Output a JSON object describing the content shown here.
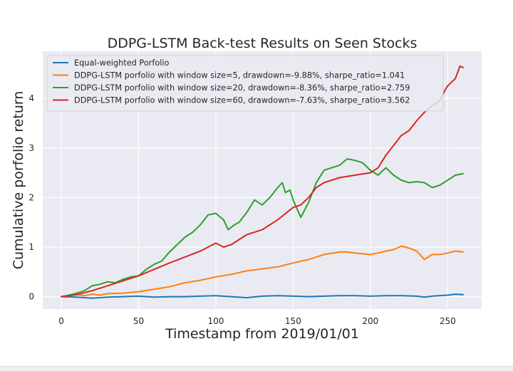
{
  "chart_data": {
    "type": "line",
    "title": "DDPG-LSTM Back-test Results on Seen Stocks",
    "xlabel": "Timestamp from 2019/01/01",
    "ylabel": "Cumulative porfolio return",
    "xlim": [
      -12,
      272
    ],
    "ylim": [
      -0.25,
      4.95
    ],
    "xticks": [
      0,
      50,
      100,
      150,
      200,
      250
    ],
    "yticks": [
      0,
      1,
      2,
      3,
      4
    ],
    "grid": true,
    "legend_position": "top-left",
    "series": [
      {
        "name": "Equal-weighted Porfolio",
        "color": "#1f77b4",
        "x": [
          0,
          10,
          20,
          30,
          40,
          50,
          60,
          70,
          80,
          90,
          100,
          110,
          120,
          130,
          140,
          150,
          160,
          170,
          180,
          190,
          200,
          210,
          220,
          230,
          235,
          240,
          250,
          255,
          260
        ],
        "y": [
          0.0,
          -0.01,
          -0.03,
          -0.01,
          0.0,
          0.01,
          -0.01,
          0.0,
          0.0,
          0.01,
          0.02,
          0.0,
          -0.02,
          0.01,
          0.02,
          0.01,
          0.0,
          0.01,
          0.02,
          0.02,
          0.01,
          0.02,
          0.02,
          0.01,
          -0.01,
          0.01,
          0.03,
          0.05,
          0.04
        ]
      },
      {
        "name": "DDPG-LSTM porfolio with window size=5, drawdown=-9.88%, sharpe_ratio=1.041",
        "color": "#ff7f0e",
        "x": [
          0,
          5,
          10,
          15,
          20,
          25,
          30,
          40,
          50,
          60,
          70,
          80,
          90,
          100,
          110,
          120,
          130,
          140,
          150,
          160,
          170,
          180,
          185,
          190,
          200,
          205,
          210,
          215,
          220,
          225,
          230,
          235,
          240,
          245,
          250,
          255,
          260
        ],
        "y": [
          0.0,
          0.02,
          0.04,
          0.02,
          0.05,
          0.03,
          0.06,
          0.07,
          0.1,
          0.15,
          0.2,
          0.28,
          0.33,
          0.4,
          0.45,
          0.52,
          0.56,
          0.6,
          0.68,
          0.75,
          0.85,
          0.9,
          0.9,
          0.88,
          0.85,
          0.88,
          0.92,
          0.95,
          1.02,
          0.98,
          0.92,
          0.75,
          0.85,
          0.85,
          0.88,
          0.92,
          0.9
        ]
      },
      {
        "name": "DDPG-LSTM porfolio with window size=20, drawdown=-8.36%, sharpe_ratio=2.759",
        "color": "#2ca02c",
        "x": [
          0,
          5,
          10,
          15,
          20,
          25,
          30,
          35,
          40,
          45,
          50,
          55,
          60,
          65,
          70,
          75,
          80,
          85,
          90,
          95,
          100,
          105,
          108,
          112,
          115,
          120,
          125,
          130,
          135,
          140,
          143,
          145,
          148,
          150,
          155,
          160,
          165,
          170,
          175,
          180,
          185,
          190,
          195,
          200,
          205,
          210,
          215,
          220,
          225,
          230,
          235,
          240,
          245,
          250,
          255,
          260
        ],
        "y": [
          0.0,
          0.03,
          0.07,
          0.12,
          0.22,
          0.25,
          0.3,
          0.28,
          0.35,
          0.4,
          0.42,
          0.55,
          0.65,
          0.72,
          0.9,
          1.05,
          1.2,
          1.3,
          1.45,
          1.65,
          1.68,
          1.55,
          1.35,
          1.45,
          1.5,
          1.7,
          1.95,
          1.85,
          2.0,
          2.2,
          2.3,
          2.1,
          2.15,
          1.95,
          1.6,
          1.9,
          2.3,
          2.55,
          2.6,
          2.65,
          2.78,
          2.75,
          2.7,
          2.55,
          2.45,
          2.6,
          2.45,
          2.35,
          2.3,
          2.32,
          2.3,
          2.2,
          2.25,
          2.35,
          2.45,
          2.48
        ]
      },
      {
        "name": "DDPG-LSTM porfolio with window size=60, drawdown=-7.63%, sharpe_ratio=3.562",
        "color": "#d62728",
        "x": [
          0,
          10,
          20,
          30,
          40,
          50,
          60,
          70,
          80,
          90,
          100,
          105,
          110,
          120,
          130,
          140,
          150,
          155,
          160,
          165,
          170,
          175,
          180,
          190,
          200,
          205,
          210,
          215,
          220,
          225,
          230,
          235,
          240,
          245,
          248,
          250,
          255,
          258,
          260
        ],
        "y": [
          0.0,
          0.04,
          0.12,
          0.22,
          0.32,
          0.42,
          0.55,
          0.68,
          0.8,
          0.92,
          1.08,
          1.0,
          1.05,
          1.25,
          1.35,
          1.55,
          1.8,
          1.85,
          2.0,
          2.2,
          2.3,
          2.35,
          2.4,
          2.45,
          2.5,
          2.6,
          2.85,
          3.05,
          3.25,
          3.35,
          3.55,
          3.72,
          3.85,
          3.95,
          4.15,
          4.25,
          4.4,
          4.65,
          4.62
        ]
      }
    ]
  }
}
